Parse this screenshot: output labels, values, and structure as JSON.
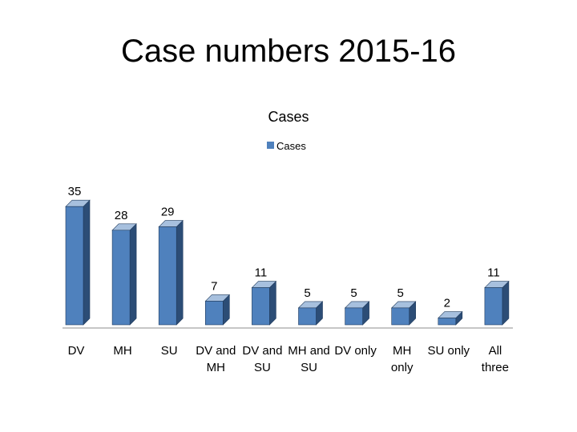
{
  "slide_title": "Case numbers 2015-16",
  "chart_data": {
    "type": "bar",
    "title": "Cases",
    "legend_position": "top",
    "categories": [
      [
        "DV"
      ],
      [
        "MH"
      ],
      [
        "SU"
      ],
      [
        "DV and",
        "MH"
      ],
      [
        "DV and",
        "SU"
      ],
      [
        "MH and",
        "SU"
      ],
      [
        "DV only"
      ],
      [
        "MH",
        "only"
      ],
      [
        "SU only"
      ],
      [
        "All",
        "three"
      ]
    ],
    "series": [
      {
        "name": "Cases",
        "values": [
          35,
          28,
          29,
          7,
          11,
          5,
          5,
          5,
          2,
          11
        ]
      }
    ],
    "data_labels": true,
    "ylim": [
      0,
      36
    ],
    "grid": false,
    "colors": {
      "bar_front": "#4F81BD",
      "bar_side": "#2C4D76",
      "bar_top": "#A7C0DE",
      "edge": "#1F3A5C",
      "axis": "#8C8C8C"
    }
  }
}
